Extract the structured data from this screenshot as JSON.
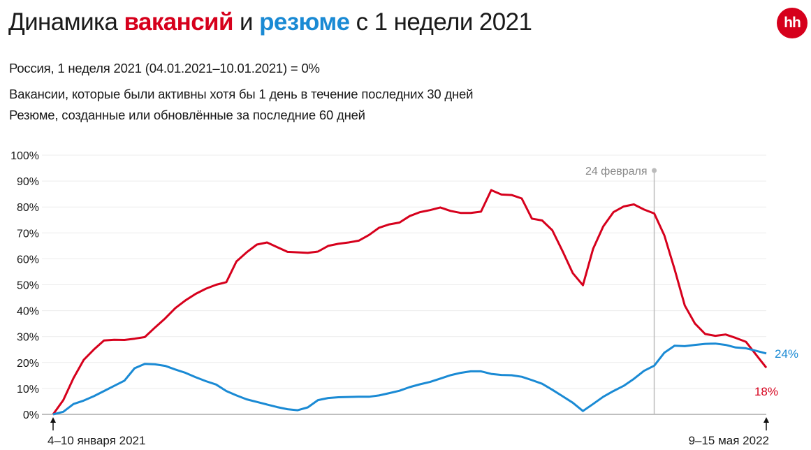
{
  "header": {
    "title_part1": "Динамика ",
    "title_vacancies": "вакансий",
    "title_part2": " и ",
    "title_resumes": "резюме",
    "title_part3": " с 1 недели 2021",
    "logo_text": "hh",
    "subtitle_base": "Россия, 1 неделя 2021 (04.01.2021–10.01.2021) = 0%",
    "note_vacancies": "Вакансии, которые были активны хотя бы 1 день в течение последних 30 дней",
    "note_resumes": "Резюме, созданные или обновлённые за последние 60 дней"
  },
  "colors": {
    "vacancies": "#d6001c",
    "resumes": "#1a8ad4",
    "grid": "#ececec",
    "marker": "#bbbbbb"
  },
  "chart_data": {
    "type": "line",
    "title": "Динамика вакансий и резюме с 1 недели 2021",
    "xlabel": "",
    "ylabel": "",
    "ylim": [
      0,
      100
    ],
    "yticks": [
      "0%",
      "10%",
      "20%",
      "30%",
      "40%",
      "50%",
      "60%",
      "70%",
      "80%",
      "90%",
      "100%"
    ],
    "x_start_label": "4–10 января 2021",
    "x_end_label": "9–15 мая 2022",
    "weeks": 71,
    "annotation": {
      "label": "24 февраля",
      "week_index": 59
    },
    "series": [
      {
        "name": "Вакансии",
        "color": "#d6001c",
        "end_label": "18%",
        "values": [
          0,
          5.5,
          14,
          21,
          25,
          28.5,
          28.8,
          28.7,
          29.2,
          29.8,
          33.5,
          37,
          41,
          44,
          46.5,
          48.5,
          50,
          51,
          59,
          62.5,
          65.5,
          66.3,
          64.5,
          62.7,
          62.5,
          62.3,
          62.8,
          65,
          65.8,
          66.3,
          67,
          69.2,
          72,
          73.3,
          74,
          76.5,
          78,
          78.8,
          79.8,
          78.5,
          77.7,
          77.7,
          78.2,
          86.5,
          84.8,
          84.6,
          83.3,
          75.5,
          74.8,
          71,
          63,
          54.5,
          49.8,
          63.8,
          72.5,
          78,
          80.2,
          81,
          79,
          77.5,
          69,
          56,
          42,
          35,
          31,
          30.3,
          30.8,
          29.5,
          28,
          23,
          18
        ]
      },
      {
        "name": "Резюме",
        "color": "#1a8ad4",
        "end_label": "24%",
        "values": [
          0,
          1,
          4,
          5.3,
          7,
          9,
          11,
          13,
          17.8,
          19.5,
          19.3,
          18.7,
          17.3,
          16,
          14.3,
          12.8,
          11.5,
          9,
          7.3,
          5.8,
          4.8,
          3.8,
          2.8,
          2,
          1.6,
          2.7,
          5.5,
          6.3,
          6.6,
          6.7,
          6.8,
          6.8,
          7.3,
          8.2,
          9.1,
          10.5,
          11.6,
          12.5,
          13.8,
          15.1,
          16,
          16.6,
          16.6,
          15.6,
          15.2,
          15.1,
          14.5,
          13.2,
          11.8,
          9.5,
          7,
          4.5,
          1.3,
          4,
          6.8,
          9,
          11,
          13.7,
          16.8,
          18.8,
          23.8,
          26.5,
          26.3,
          26.8,
          27.2,
          27.3,
          26.8,
          25.8,
          25.5,
          24.5,
          23.5
        ]
      }
    ]
  }
}
